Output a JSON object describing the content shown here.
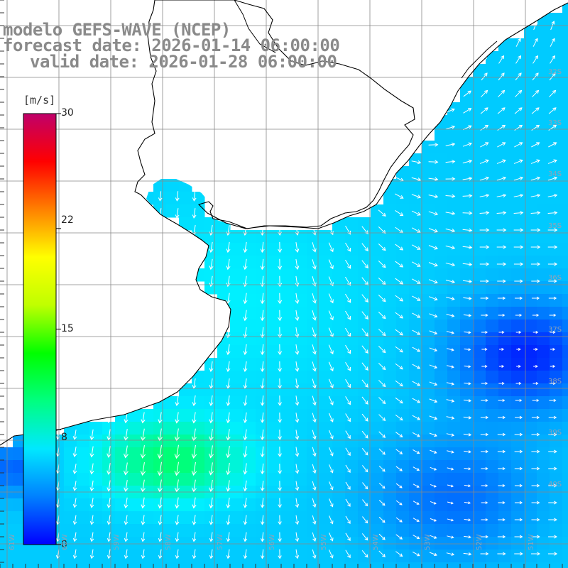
{
  "title": {
    "line1": "modelo GEFS-WAVE (NCEP)",
    "line2": "forecast date: 2026-01-14 06:00:00",
    "line3": "valid date: 2026-01-28 06:00:00"
  },
  "colorbar": {
    "unit": "[m/s]",
    "ticks": [
      "30",
      "22",
      "15",
      "8",
      "0"
    ],
    "min": 0,
    "max": 30,
    "colors": [
      "#0000ff",
      "#0080ff",
      "#00e8ff",
      "#00ff80",
      "#00ff00",
      "#c0ff00",
      "#ffff00",
      "#ff8000",
      "#ff0000",
      "#c0006a"
    ]
  },
  "lat_labels": [
    "32S",
    "33S",
    "34S",
    "35S",
    "36S",
    "37S",
    "38S",
    "39S",
    "40S"
  ],
  "lon_labels": [
    "61W",
    "60W",
    "59W",
    "58W",
    "57W",
    "56W",
    "55W",
    "54W",
    "53W",
    "52W",
    "51W"
  ],
  "colors": {
    "land": "#ffffff",
    "grid": "#888888",
    "coast": "#000000",
    "arrow": "#ffffff",
    "title": "#8a8a8a"
  }
}
